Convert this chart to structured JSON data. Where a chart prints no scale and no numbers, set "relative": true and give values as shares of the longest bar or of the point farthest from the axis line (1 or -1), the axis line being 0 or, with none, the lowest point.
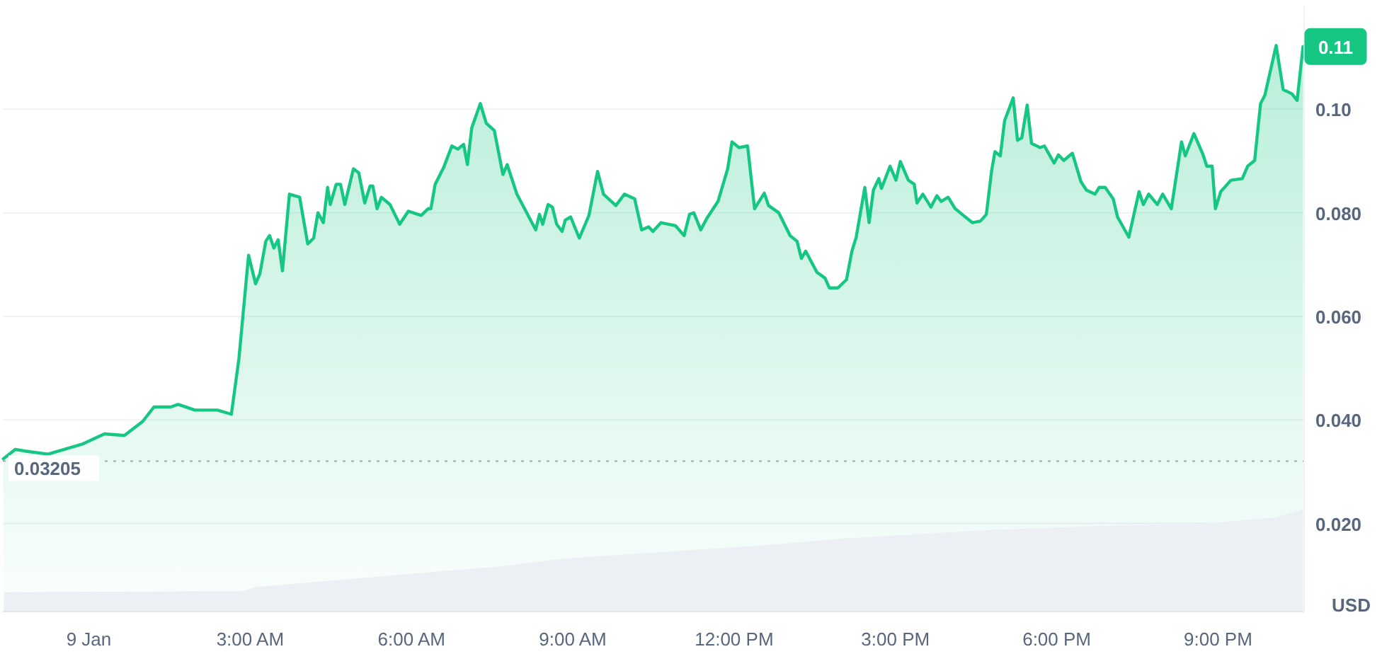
{
  "chart_data": [
    {
      "type": "area",
      "ylabel": "USD",
      "xlim": [
        -1.6,
        22.6
      ],
      "ylim": [
        0.003,
        0.12
      ],
      "xticks": [
        {
          "value": 0,
          "label": "9 Jan"
        },
        {
          "value": 3,
          "label": "3:00 AM"
        },
        {
          "value": 6,
          "label": "6:00 AM"
        },
        {
          "value": 9,
          "label": "9:00 AM"
        },
        {
          "value": 12,
          "label": "12:00 PM"
        },
        {
          "value": 15,
          "label": "3:00 PM"
        },
        {
          "value": 18,
          "label": "6:00 PM"
        },
        {
          "value": 21,
          "label": "9:00 PM"
        }
      ],
      "yticks": [
        {
          "value": 0.02,
          "label": "0.020"
        },
        {
          "value": 0.04,
          "label": "0.040"
        },
        {
          "value": 0.06,
          "label": "0.060"
        },
        {
          "value": 0.08,
          "label": "0.080"
        },
        {
          "value": 0.1,
          "label": "0.10"
        }
      ],
      "grid": "y",
      "ref_lines": [
        {
          "axis": "y",
          "value": 0.03205,
          "label": "0.03205",
          "line_style": "dotted",
          "color": "#a0a7b4"
        }
      ],
      "annotations": [
        {
          "text": "0.11",
          "x": 22.58,
          "y": 0.1121
        }
      ],
      "series": [
        {
          "color": "#16c784",
          "x": [
            -1.59,
            -1.37,
            -1.19,
            -0.76,
            -0.13,
            0.29,
            0.66,
            1.0,
            1.21,
            1.52,
            1.66,
            1.97,
            2.39,
            2.65,
            2.79,
            2.97,
            3.1,
            3.18,
            3.29,
            3.36,
            3.44,
            3.52,
            3.6,
            3.73,
            3.92,
            4.07,
            4.18,
            4.26,
            4.36,
            4.44,
            4.49,
            4.6,
            4.68,
            4.76,
            4.92,
            5.02,
            5.13,
            5.23,
            5.28,
            5.36,
            5.44,
            5.6,
            5.78,
            5.94,
            6.18,
            6.31,
            6.36,
            6.44,
            6.6,
            6.75,
            6.86,
            6.97,
            7.04,
            7.12,
            7.28,
            7.39,
            7.54,
            7.7,
            7.78,
            7.96,
            8.31,
            8.38,
            8.44,
            8.54,
            8.62,
            8.7,
            8.8,
            8.86,
            8.96,
            9.12,
            9.3,
            9.46,
            9.57,
            9.8,
            9.96,
            10.15,
            10.28,
            10.41,
            10.49,
            10.64,
            10.91,
            11.07,
            11.17,
            11.25,
            11.38,
            11.49,
            11.7,
            11.88,
            11.96,
            12.09,
            12.25,
            12.38,
            12.56,
            12.64,
            12.83,
            13.04,
            13.17,
            13.25,
            13.33,
            13.54,
            13.69,
            13.77,
            13.93,
            14.09,
            14.19,
            14.27,
            14.43,
            14.51,
            14.59,
            14.69,
            14.74,
            14.9,
            15.01,
            15.09,
            15.24,
            15.35,
            15.4,
            15.51,
            15.66,
            15.77,
            15.85,
            15.98,
            16.11,
            16.24,
            16.43,
            16.58,
            16.69,
            16.79,
            16.85,
            16.95,
            17.03,
            17.19,
            17.27,
            17.35,
            17.45,
            17.53,
            17.69,
            17.77,
            17.95,
            18.03,
            18.13,
            18.29,
            18.45,
            18.55,
            18.71,
            18.79,
            18.9,
            19.05,
            19.13,
            19.34,
            19.53,
            19.61,
            19.71,
            19.87,
            19.97,
            20.13,
            20.32,
            20.39,
            20.55,
            20.71,
            20.79,
            20.89,
            20.95,
            21.05,
            21.24,
            21.45,
            21.55,
            21.68,
            21.79,
            21.87,
            22.08,
            22.21,
            22.37,
            22.47,
            22.58
          ],
          "values": [
            0.0325,
            0.0343,
            0.034,
            0.0334,
            0.0353,
            0.0373,
            0.037,
            0.0397,
            0.0425,
            0.0425,
            0.043,
            0.0419,
            0.0419,
            0.0411,
            0.0518,
            0.0718,
            0.0663,
            0.0682,
            0.0745,
            0.0756,
            0.0732,
            0.0748,
            0.0688,
            0.0836,
            0.083,
            0.074,
            0.0751,
            0.08,
            0.0781,
            0.0849,
            0.0816,
            0.0855,
            0.0855,
            0.0816,
            0.0885,
            0.0877,
            0.0819,
            0.0852,
            0.0852,
            0.0808,
            0.083,
            0.0816,
            0.0778,
            0.0803,
            0.0795,
            0.0808,
            0.0808,
            0.0855,
            0.0888,
            0.0929,
            0.0923,
            0.0932,
            0.0893,
            0.0964,
            0.1011,
            0.0973,
            0.0959,
            0.0874,
            0.0893,
            0.0836,
            0.0767,
            0.0797,
            0.0778,
            0.0816,
            0.0811,
            0.0778,
            0.0764,
            0.0786,
            0.0792,
            0.0751,
            0.0795,
            0.088,
            0.0836,
            0.0814,
            0.0836,
            0.0827,
            0.0767,
            0.0773,
            0.0764,
            0.0781,
            0.0775,
            0.0756,
            0.0797,
            0.08,
            0.0767,
            0.0789,
            0.0822,
            0.0885,
            0.0937,
            0.0926,
            0.0929,
            0.0808,
            0.0838,
            0.0814,
            0.08,
            0.0756,
            0.0745,
            0.0712,
            0.0726,
            0.0685,
            0.0674,
            0.0655,
            0.0655,
            0.0671,
            0.0726,
            0.0753,
            0.0849,
            0.0781,
            0.0844,
            0.0866,
            0.0847,
            0.089,
            0.0863,
            0.0899,
            0.0863,
            0.0855,
            0.0819,
            0.0836,
            0.0811,
            0.0833,
            0.0822,
            0.083,
            0.0808,
            0.0797,
            0.0781,
            0.0784,
            0.0797,
            0.0882,
            0.0918,
            0.091,
            0.0978,
            0.1022,
            0.094,
            0.0945,
            0.1008,
            0.0934,
            0.0926,
            0.0929,
            0.0896,
            0.0912,
            0.0901,
            0.0915,
            0.086,
            0.0844,
            0.0836,
            0.0849,
            0.0849,
            0.0827,
            0.0792,
            0.0753,
            0.0841,
            0.0816,
            0.0836,
            0.0816,
            0.0836,
            0.0808,
            0.0937,
            0.091,
            0.0953,
            0.0915,
            0.089,
            0.089,
            0.0808,
            0.0841,
            0.0863,
            0.0866,
            0.089,
            0.0901,
            0.1011,
            0.1027,
            0.1123,
            0.1038,
            0.103,
            0.1017,
            0.1121
          ]
        }
      ]
    },
    {
      "type": "area",
      "relative": true,
      "xlim": [
        -1.6,
        22.6
      ],
      "series": [
        {
          "color": "#eceff3",
          "x": [
            -1.58,
            2.84,
            3.1,
            5.99,
            7.57,
            8.88,
            12.56,
            14.14,
            16.77,
            18.87,
            20.71,
            22.02,
            22.58
          ],
          "values": [
            0.19,
            0.2,
            0.24,
            0.37,
            0.44,
            0.52,
            0.65,
            0.72,
            0.8,
            0.84,
            0.86,
            0.92,
            1.0
          ]
        }
      ]
    }
  ]
}
